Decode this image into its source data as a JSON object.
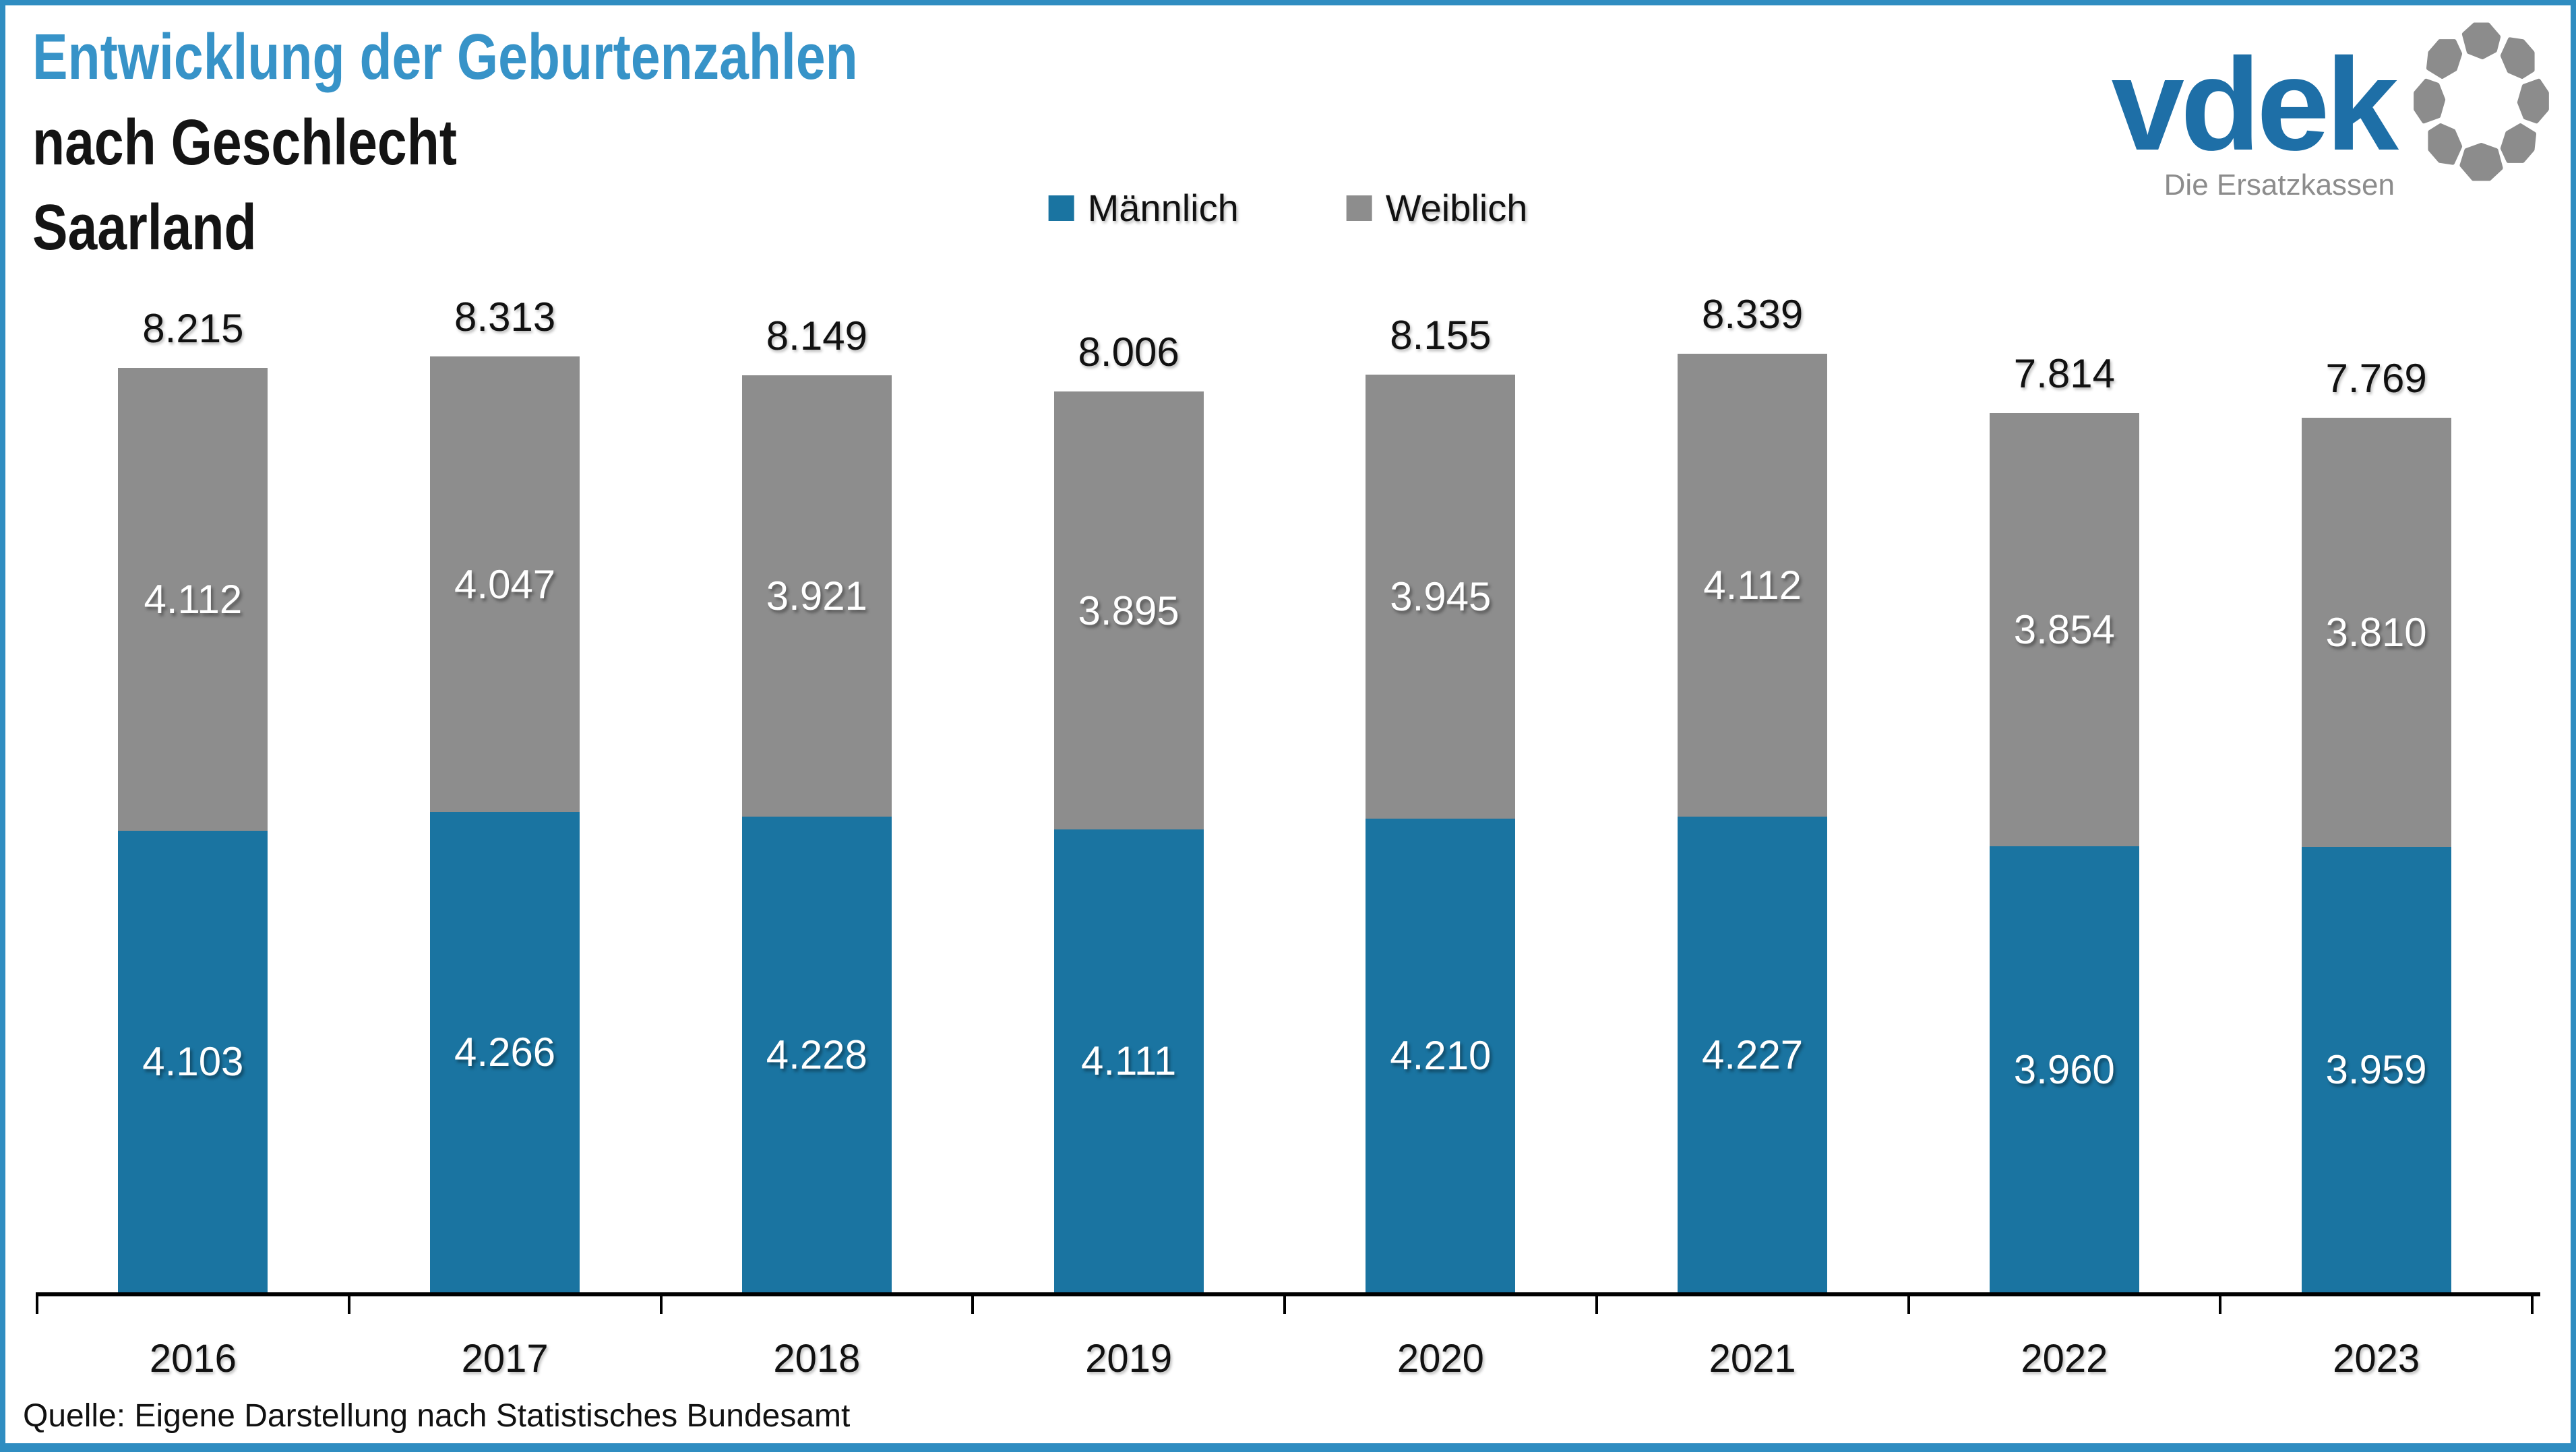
{
  "header": {
    "title_line1": "Entwicklung der Geburtenzahlen",
    "title_line2": "nach Geschlecht",
    "title_line3": "Saarland"
  },
  "logo": {
    "wordmark": "vdek",
    "tagline": "Die Ersatzkassen"
  },
  "footer": {
    "source": "Quelle: Eigene Darstellung nach Statistisches Bundesamt"
  },
  "colors": {
    "maennlich_blue": "#1a74a1",
    "weiblich_gray": "#8d8d8d",
    "title_blue": "#3793c8",
    "border_blue": "#2f8dc1",
    "logo_blue": "#1e6fa7",
    "logo_gray": "#8c8c8c",
    "axis_black": "#000000"
  },
  "chart_data": {
    "type": "bar",
    "stacked": true,
    "title": "Entwicklung der Geburtenzahlen nach Geschlecht, Saarland",
    "xlabel": "",
    "ylabel": "",
    "grid": false,
    "legend_position": "top-center",
    "ylim": [
      0,
      8500
    ],
    "categories": [
      "2016",
      "2017",
      "2018",
      "2019",
      "2020",
      "2021",
      "2022",
      "2023"
    ],
    "series": [
      {
        "name": "Männlich",
        "color": "#1a74a1",
        "values": [
          4103,
          4266,
          4228,
          4111,
          4210,
          4227,
          3960,
          3959
        ],
        "labels": [
          "4.103",
          "4.266",
          "4.228",
          "4.111",
          "4.210",
          "4.227",
          "3.960",
          "3.959"
        ]
      },
      {
        "name": "Weiblich",
        "color": "#8d8d8d",
        "values": [
          4112,
          4047,
          3921,
          3895,
          3945,
          4112,
          3854,
          3810
        ],
        "labels": [
          "4.112",
          "4.047",
          "3.921",
          "3.895",
          "3.945",
          "4.112",
          "3.854",
          "3.810"
        ]
      }
    ],
    "totals": [
      8215,
      8313,
      8149,
      8006,
      8155,
      8339,
      7814,
      7769
    ],
    "total_labels": [
      "8.215",
      "8.313",
      "8.149",
      "8.006",
      "8.155",
      "8.339",
      "7.814",
      "7.769"
    ]
  }
}
